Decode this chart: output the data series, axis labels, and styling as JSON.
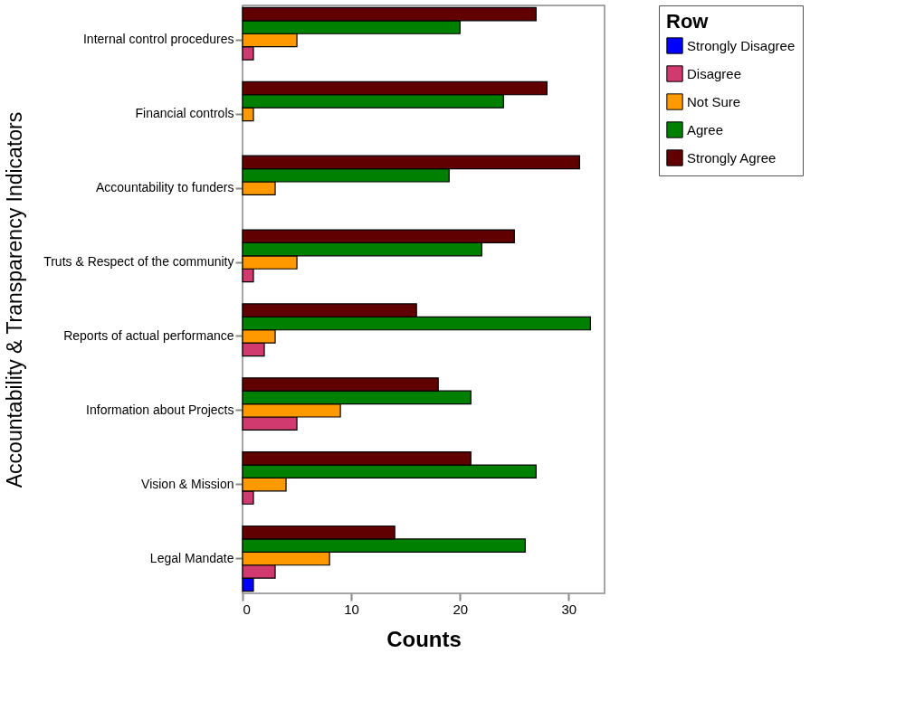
{
  "chart_data": {
    "type": "bar",
    "orientation": "horizontal",
    "xlabel": "Counts",
    "ylabel": "Accountability & Transparency Indicators",
    "legend_title": "Row",
    "categories": [
      "Internal control procedures",
      "Financial controls",
      "Accountability to funders",
      "Truts & Respect of the community",
      "Reports of actual performance",
      "Information about Projects",
      "Vision & Mission",
      "Legal Mandate"
    ],
    "series": [
      {
        "name": "Strongly Disagree",
        "color": "#0000ff",
        "values": [
          null,
          null,
          null,
          null,
          null,
          null,
          null,
          1
        ]
      },
      {
        "name": "Disagree",
        "color": "#d13a6e",
        "values": [
          1,
          null,
          null,
          1,
          2,
          5,
          1,
          3
        ]
      },
      {
        "name": "Not Sure",
        "color": "#ff9900",
        "values": [
          5,
          1,
          3,
          5,
          3,
          9,
          4,
          8
        ]
      },
      {
        "name": "Agree",
        "color": "#008000",
        "values": [
          20,
          24,
          19,
          22,
          32,
          21,
          27,
          26
        ]
      },
      {
        "name": "Strongly Agree",
        "color": "#600000",
        "values": [
          27,
          28,
          31,
          25,
          16,
          18,
          21,
          14
        ]
      }
    ],
    "xlim": [
      0,
      33.3
    ],
    "xticks": [
      0,
      10,
      20,
      30
    ],
    "grid": false,
    "legend": "top right"
  }
}
